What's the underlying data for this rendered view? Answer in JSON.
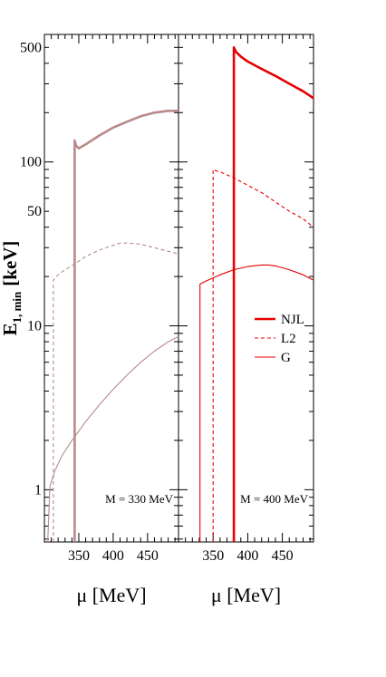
{
  "chart_data": {
    "type": "line",
    "ylabel_main": "E",
    "ylabel_sub": "1, min",
    "ylabel_unit": "[keV]",
    "yscale": "log",
    "ylim": [
      0.48,
      600
    ],
    "ytick_labels": [
      {
        "value": 1,
        "label": "1"
      },
      {
        "value": 10,
        "label": "10"
      },
      {
        "value": 50,
        "label": "50"
      },
      {
        "value": 100,
        "label": "100"
      },
      {
        "value": 500,
        "label": "500"
      }
    ],
    "legend": {
      "placement": "right panel, middle",
      "entries": [
        {
          "label": "NJL",
          "style": "thick"
        },
        {
          "label": "L2",
          "style": "dashed"
        },
        {
          "label": "G",
          "style": "thin"
        }
      ]
    },
    "panels": [
      {
        "label": "M = 330 MeV",
        "xlabel": "μ [MeV]",
        "xlim": [
          300,
          495
        ],
        "xtick_labels": [
          {
            "value": 350,
            "label": "350"
          },
          {
            "value": 400,
            "label": "400"
          },
          {
            "value": 450,
            "label": "450"
          }
        ],
        "color": "#b88a8a",
        "series": [
          {
            "name": "NJL",
            "style": "thick",
            "onset": 344,
            "x": [
              344,
              346,
              350,
              360,
              380,
              400,
              420,
              440,
              460,
              480,
              495
            ],
            "y": [
              135,
              126,
              121,
              128,
              145,
              162,
              176,
              190,
              200,
              205,
              205
            ]
          },
          {
            "name": "L2",
            "style": "dashed",
            "onset": 313,
            "x": [
              313,
              320,
              330,
              345,
              360,
              380,
              400,
              410,
              420,
              440,
              460,
              480,
              495
            ],
            "y": [
              19,
              20.5,
              22,
              24,
              26.5,
              29,
              31,
              32,
              32,
              31.5,
              30,
              28.5,
              27.5
            ]
          },
          {
            "name": "G",
            "style": "thin",
            "onset": 305,
            "x": [
              305,
              308,
              315,
              325,
              340,
              360,
              380,
              400,
              420,
              440,
              460,
              480,
              495
            ],
            "y": [
              0.5,
              1.05,
              1.3,
              1.6,
              2.0,
              2.6,
              3.3,
              4.1,
              5.0,
              6.0,
              7.0,
              8.0,
              8.6
            ]
          }
        ]
      },
      {
        "label": "M = 400 MeV",
        "xlabel": "μ [MeV]",
        "xlim": [
          300,
          495
        ],
        "xtick_labels": [
          {
            "value": 350,
            "label": "350"
          },
          {
            "value": 400,
            "label": "400"
          },
          {
            "value": 450,
            "label": "450"
          }
        ],
        "color": "#e60000",
        "series": [
          {
            "name": "NJL",
            "style": "thick",
            "onset": 380,
            "x": [
              380,
              383,
              390,
              400,
              420,
              440,
              460,
              480,
              495
            ],
            "y": [
              500,
              470,
              440,
              410,
              370,
              335,
              300,
              270,
              245
            ]
          },
          {
            "name": "L2",
            "style": "dashed",
            "onset": 350,
            "x": [
              350,
              352,
              360,
              380,
              400,
              420,
              440,
              460,
              480,
              495
            ],
            "y": [
              90,
              89,
              87,
              80,
              72,
              65,
              57,
              50,
              45,
              40
            ]
          },
          {
            "name": "G",
            "style": "thin",
            "onset": 331,
            "x": [
              331,
              340,
              360,
              380,
              400,
              420,
              430,
              440,
              460,
              480,
              495
            ],
            "y": [
              18,
              18.8,
              20.5,
              22,
              23,
              23.5,
              23.5,
              23.2,
              22,
              20.5,
              19
            ]
          }
        ]
      }
    ]
  }
}
